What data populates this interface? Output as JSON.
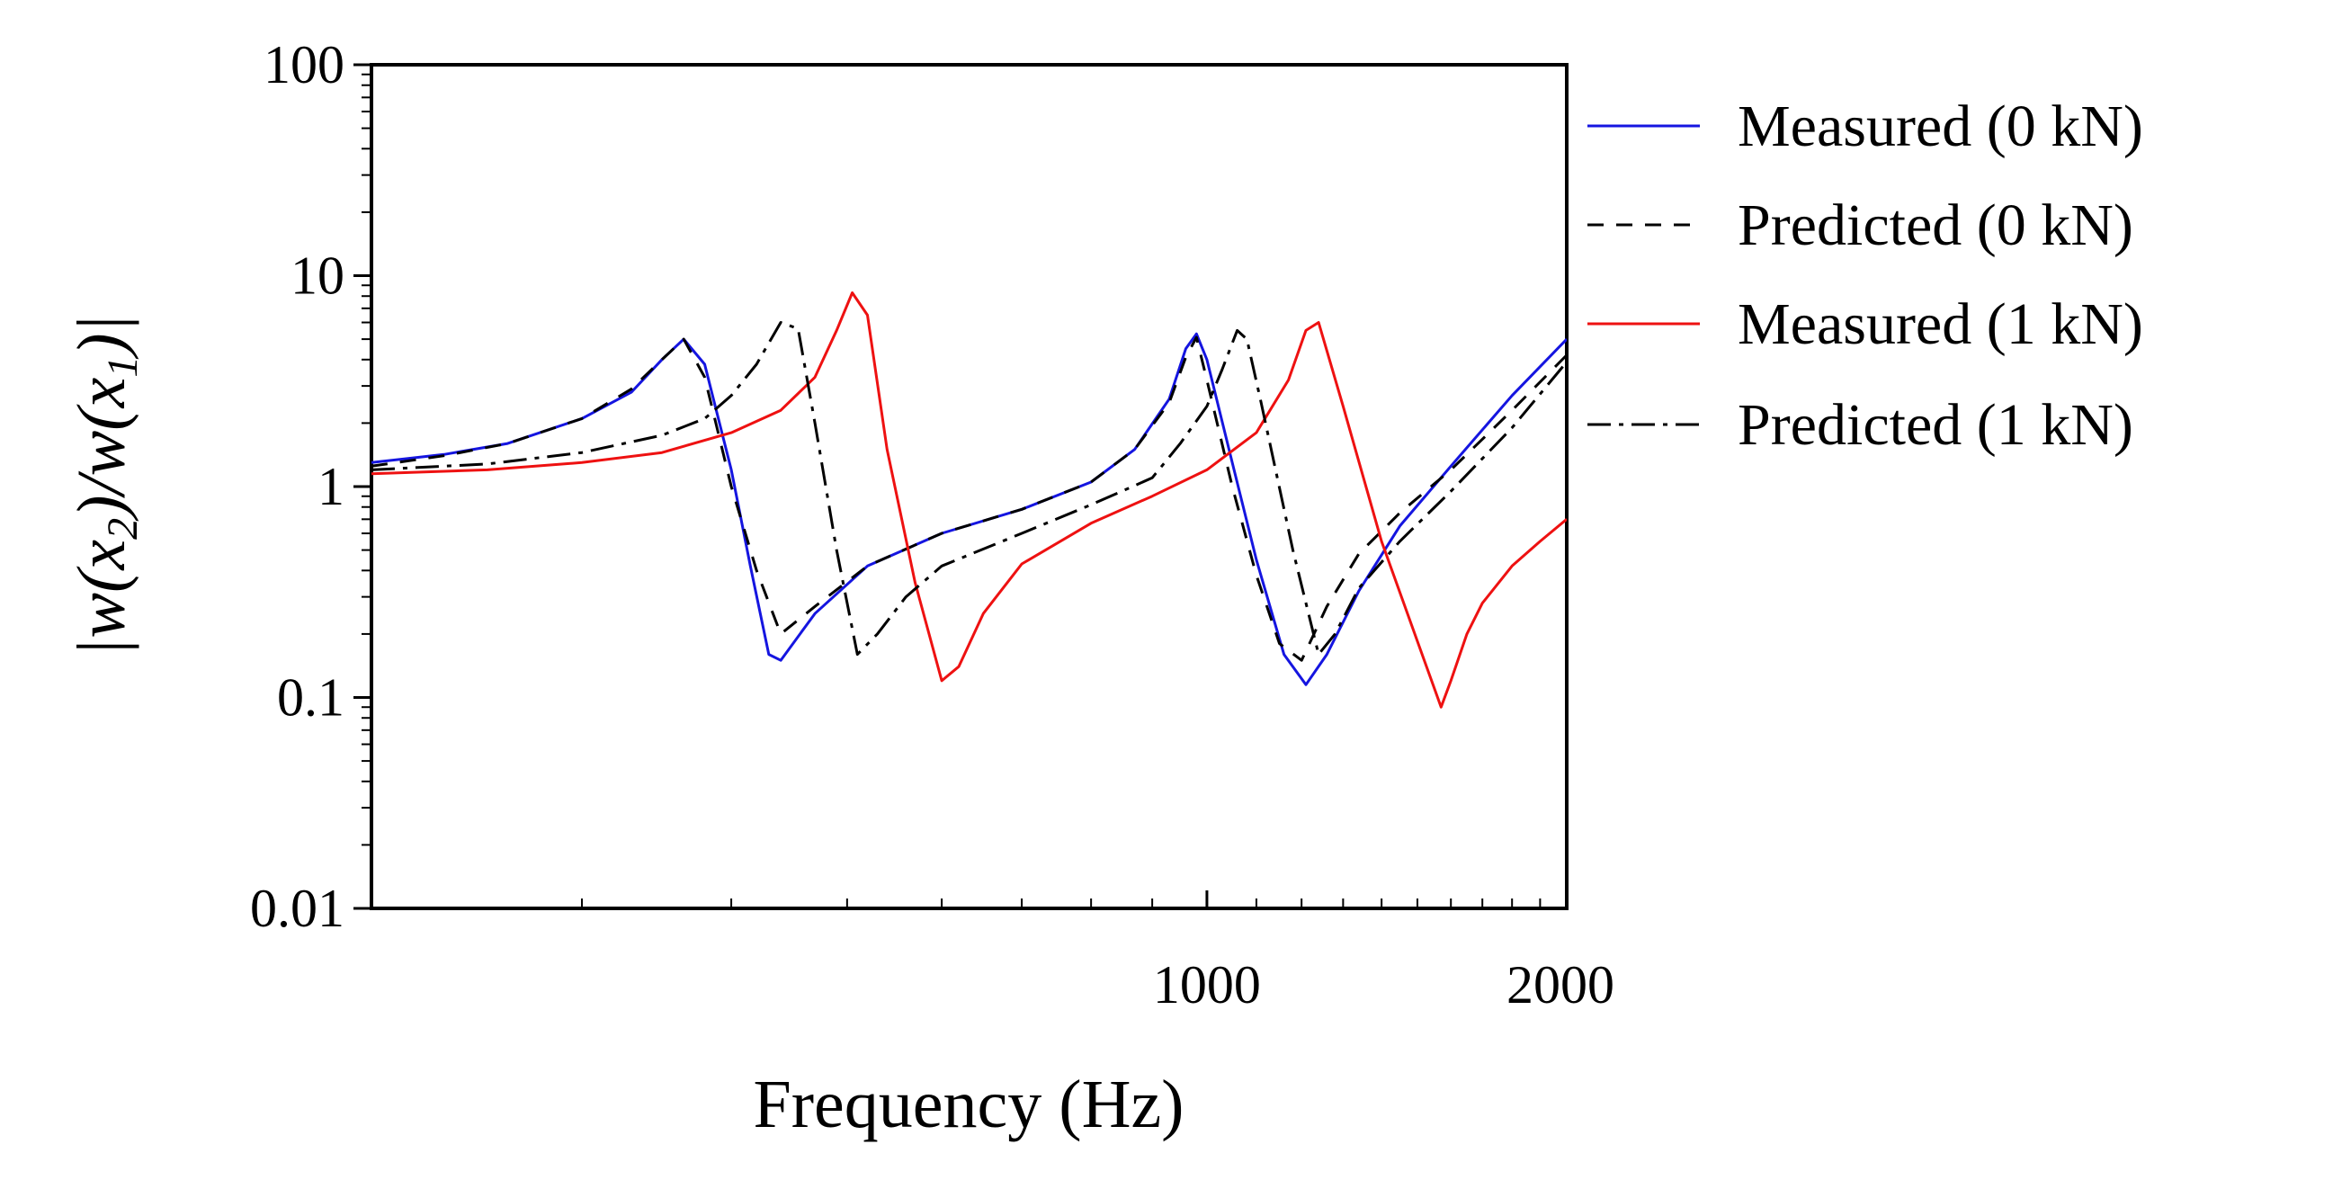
{
  "chart_data": {
    "type": "line",
    "title": "",
    "xlabel": "Frequency (Hz)",
    "ylabel": {
      "prefix": "|w(x",
      "sub1": "2",
      "middle": ")/w(x",
      "sub2": "1",
      "suffix": ")|"
    },
    "xscale": "log",
    "yscale": "log",
    "xlim": [
      200,
      2000
    ],
    "ylim": [
      0.01,
      100
    ],
    "x_tick_labels": [
      {
        "value": 1000,
        "label": "1000"
      },
      {
        "value": 2000,
        "label": "2000"
      }
    ],
    "y_tick_labels": [
      {
        "value": 0.01,
        "label": "0.01"
      },
      {
        "value": 0.1,
        "label": "0.1"
      },
      {
        "value": 1,
        "label": "1"
      },
      {
        "value": 10,
        "label": "10"
      },
      {
        "value": 100,
        "label": "100"
      }
    ],
    "legend_position": "right",
    "series": [
      {
        "name": "Measured (0 kN)",
        "color": "#1515e0",
        "dash": "solid",
        "x": [
          200,
          230,
          260,
          300,
          330,
          350,
          365,
          380,
          400,
          415,
          430,
          440,
          470,
          520,
          600,
          700,
          800,
          870,
          930,
          960,
          980,
          1000,
          1050,
          1100,
          1160,
          1210,
          1260,
          1340,
          1450,
          1600,
          1800,
          2000
        ],
        "y": [
          1.3,
          1.42,
          1.6,
          2.1,
          2.8,
          4.0,
          5.0,
          3.8,
          1.2,
          0.42,
          0.16,
          0.15,
          0.25,
          0.42,
          0.6,
          0.78,
          1.05,
          1.5,
          2.6,
          4.5,
          5.3,
          4.0,
          1.3,
          0.45,
          0.16,
          0.115,
          0.16,
          0.32,
          0.65,
          1.25,
          2.7,
          5.0
        ]
      },
      {
        "name": "Predicted (0 kN)",
        "color": "#000000",
        "dash": "18,14",
        "x": [
          200,
          230,
          260,
          300,
          330,
          350,
          365,
          380,
          400,
          420,
          440,
          470,
          520,
          600,
          700,
          800,
          870,
          930,
          960,
          980,
          1000,
          1050,
          1100,
          1150,
          1200,
          1260,
          1340,
          1450,
          1600,
          1800,
          2000
        ],
        "y": [
          1.25,
          1.4,
          1.6,
          2.1,
          2.9,
          4.0,
          5.0,
          3.3,
          1.0,
          0.4,
          0.2,
          0.27,
          0.42,
          0.6,
          0.78,
          1.05,
          1.5,
          2.5,
          4.1,
          5.1,
          3.2,
          1.0,
          0.38,
          0.18,
          0.15,
          0.27,
          0.48,
          0.75,
          1.2,
          2.3,
          4.2
        ]
      },
      {
        "name": "Measured (1 kN)",
        "color": "#ee1111",
        "dash": "solid",
        "x": [
          200,
          250,
          300,
          350,
          400,
          440,
          470,
          490,
          505,
          520,
          540,
          570,
          600,
          620,
          650,
          700,
          800,
          900,
          1000,
          1100,
          1170,
          1210,
          1240,
          1300,
          1400,
          1520,
          1570,
          1600,
          1650,
          1700,
          1800,
          1900,
          2000
        ],
        "y": [
          1.15,
          1.2,
          1.3,
          1.45,
          1.8,
          2.3,
          3.3,
          5.5,
          8.3,
          6.5,
          1.5,
          0.35,
          0.12,
          0.14,
          0.25,
          0.43,
          0.67,
          0.9,
          1.2,
          1.8,
          3.2,
          5.5,
          6.0,
          2.4,
          0.55,
          0.15,
          0.09,
          0.12,
          0.2,
          0.28,
          0.42,
          0.55,
          0.7
        ]
      },
      {
        "name": "Predicted (1 kN)",
        "color": "#000000",
        "dash": "26,9,5,9",
        "x": [
          200,
          250,
          300,
          350,
          380,
          400,
          420,
          440,
          455,
          470,
          490,
          510,
          530,
          560,
          600,
          700,
          800,
          900,
          950,
          1000,
          1030,
          1060,
          1080,
          1110,
          1180,
          1240,
          1280,
          1340,
          1450,
          1600,
          1800,
          2000
        ],
        "y": [
          1.2,
          1.28,
          1.45,
          1.75,
          2.1,
          2.7,
          3.8,
          6.0,
          5.6,
          2.0,
          0.5,
          0.16,
          0.2,
          0.3,
          0.42,
          0.6,
          0.82,
          1.1,
          1.6,
          2.4,
          3.6,
          5.5,
          5.0,
          2.5,
          0.5,
          0.16,
          0.2,
          0.33,
          0.55,
          0.95,
          1.9,
          3.9
        ]
      }
    ]
  }
}
